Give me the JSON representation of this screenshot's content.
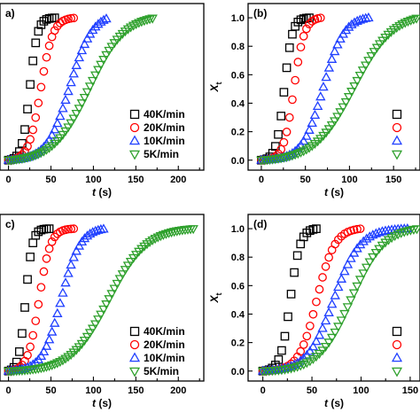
{
  "chart_data": [
    {
      "panel": "a)",
      "type": "scatter",
      "xlabel_var": "t",
      "xlabel_unit": " (s)",
      "ylabel_var": "",
      "ylabel_sub": "",
      "xlim": [
        -10,
        230
      ],
      "ylim": [
        -0.07,
        1.1
      ],
      "xticks": [
        "0",
        "50",
        "100",
        "150",
        "200"
      ],
      "xtick_values": [
        0,
        50,
        100,
        150,
        200
      ],
      "yticks": [],
      "ytick_values": [],
      "legend_position": "bottom-right",
      "series": [
        {
          "name": "40K/min",
          "marker": "square",
          "color": "#000000",
          "t0": 0,
          "t50": 25,
          "tend": 55,
          "k": 0.22
        },
        {
          "name": "20K/min",
          "marker": "circle",
          "color": "#ff0000",
          "t0": 0,
          "t50": 38,
          "tend": 80,
          "k": 0.14
        },
        {
          "name": "10K/min",
          "marker": "triangle-up",
          "color": "#1f3fff",
          "t0": 0,
          "t50": 72,
          "tend": 118,
          "k": 0.075
        },
        {
          "name": "5K/min",
          "marker": "triangle-down",
          "color": "#2ea02c",
          "t0": 0,
          "t50": 95,
          "tend": 172,
          "k": 0.048
        }
      ]
    },
    {
      "panel": "(b)",
      "type": "scatter",
      "xlabel_var": "t",
      "xlabel_unit": " (s)",
      "ylabel_var": "X",
      "ylabel_sub": "t",
      "xlim": [
        -15,
        180
      ],
      "ylim": [
        -0.07,
        1.1
      ],
      "xticks": [
        "0",
        "50",
        "100",
        "150"
      ],
      "xtick_values": [
        0,
        50,
        100,
        150
      ],
      "yticks": [
        "0.0",
        "0.2",
        "0.4",
        "0.6",
        "0.8",
        "1.0"
      ],
      "ytick_values": [
        0,
        0.2,
        0.4,
        0.6,
        0.8,
        1.0
      ],
      "legend_position": "bottom-right",
      "series": [
        {
          "name": "",
          "marker": "square",
          "color": "#000000",
          "t0": 0,
          "t50": 26,
          "tend": 55,
          "k": 0.22
        },
        {
          "name": "",
          "marker": "circle",
          "color": "#ff0000",
          "t0": 0,
          "t50": 37,
          "tend": 68,
          "k": 0.17
        },
        {
          "name": "",
          "marker": "triangle-up",
          "color": "#1f3fff",
          "t0": 0,
          "t50": 70,
          "tend": 122,
          "k": 0.085
        },
        {
          "name": "",
          "marker": "triangle-down",
          "color": "#2ea02c",
          "t0": 0,
          "t50": 105,
          "tend": 178,
          "k": 0.045
        }
      ]
    },
    {
      "panel": "c)",
      "type": "scatter",
      "xlabel_var": "t",
      "xlabel_unit": " (s)",
      "ylabel_var": "",
      "ylabel_sub": "",
      "xlim": [
        -10,
        230
      ],
      "ylim": [
        -0.07,
        1.1
      ],
      "xticks": [
        "0",
        "50",
        "100",
        "150",
        "200"
      ],
      "xtick_values": [
        0,
        50,
        100,
        150,
        200
      ],
      "yticks": [],
      "ytick_values": [],
      "legend_position": "bottom-right",
      "series": [
        {
          "name": "40K/min",
          "marker": "square",
          "color": "#000000",
          "t0": 0,
          "t50": 20,
          "tend": 50,
          "k": 0.25
        },
        {
          "name": "20K/min",
          "marker": "circle",
          "color": "#ff0000",
          "t0": 0,
          "t50": 36,
          "tend": 78,
          "k": 0.15
        },
        {
          "name": "10K/min",
          "marker": "triangle-up",
          "color": "#1f3fff",
          "t0": 0,
          "t50": 62,
          "tend": 115,
          "k": 0.09
        },
        {
          "name": "5K/min",
          "marker": "triangle-down",
          "color": "#2ea02c",
          "t0": 0,
          "t50": 118,
          "tend": 218,
          "k": 0.045
        }
      ]
    },
    {
      "panel": "(d)",
      "type": "scatter",
      "xlabel_var": "t",
      "xlabel_unit": " (s)",
      "ylabel_var": "X",
      "ylabel_sub": "t",
      "xlim": [
        -15,
        160
      ],
      "ylim": [
        -0.07,
        1.1
      ],
      "xticks": [
        "0",
        "50",
        "100",
        "150"
      ],
      "xtick_values": [
        0,
        50,
        100,
        150
      ],
      "yticks": [
        "0.0",
        "0.2",
        "0.4",
        "0.6",
        "0.8",
        "1.0"
      ],
      "ytick_values": [
        0,
        0.2,
        0.4,
        0.6,
        0.8,
        1.0
      ],
      "legend_position": "bottom-right",
      "series": [
        {
          "name": "",
          "marker": "square",
          "color": "#000000",
          "t0": 0,
          "t50": 28,
          "tend": 55,
          "k": 0.2
        },
        {
          "name": "",
          "marker": "circle",
          "color": "#ff0000",
          "t0": 0,
          "t50": 55,
          "tend": 100,
          "k": 0.11
        },
        {
          "name": "",
          "marker": "triangle-up",
          "color": "#1f3fff",
          "t0": 0,
          "t50": 72,
          "tend": 150,
          "k": 0.075
        },
        {
          "name": "",
          "marker": "triangle-down",
          "color": "#2ea02c",
          "t0": 0,
          "t50": 90,
          "tend": 158,
          "k": 0.06
        }
      ]
    }
  ]
}
